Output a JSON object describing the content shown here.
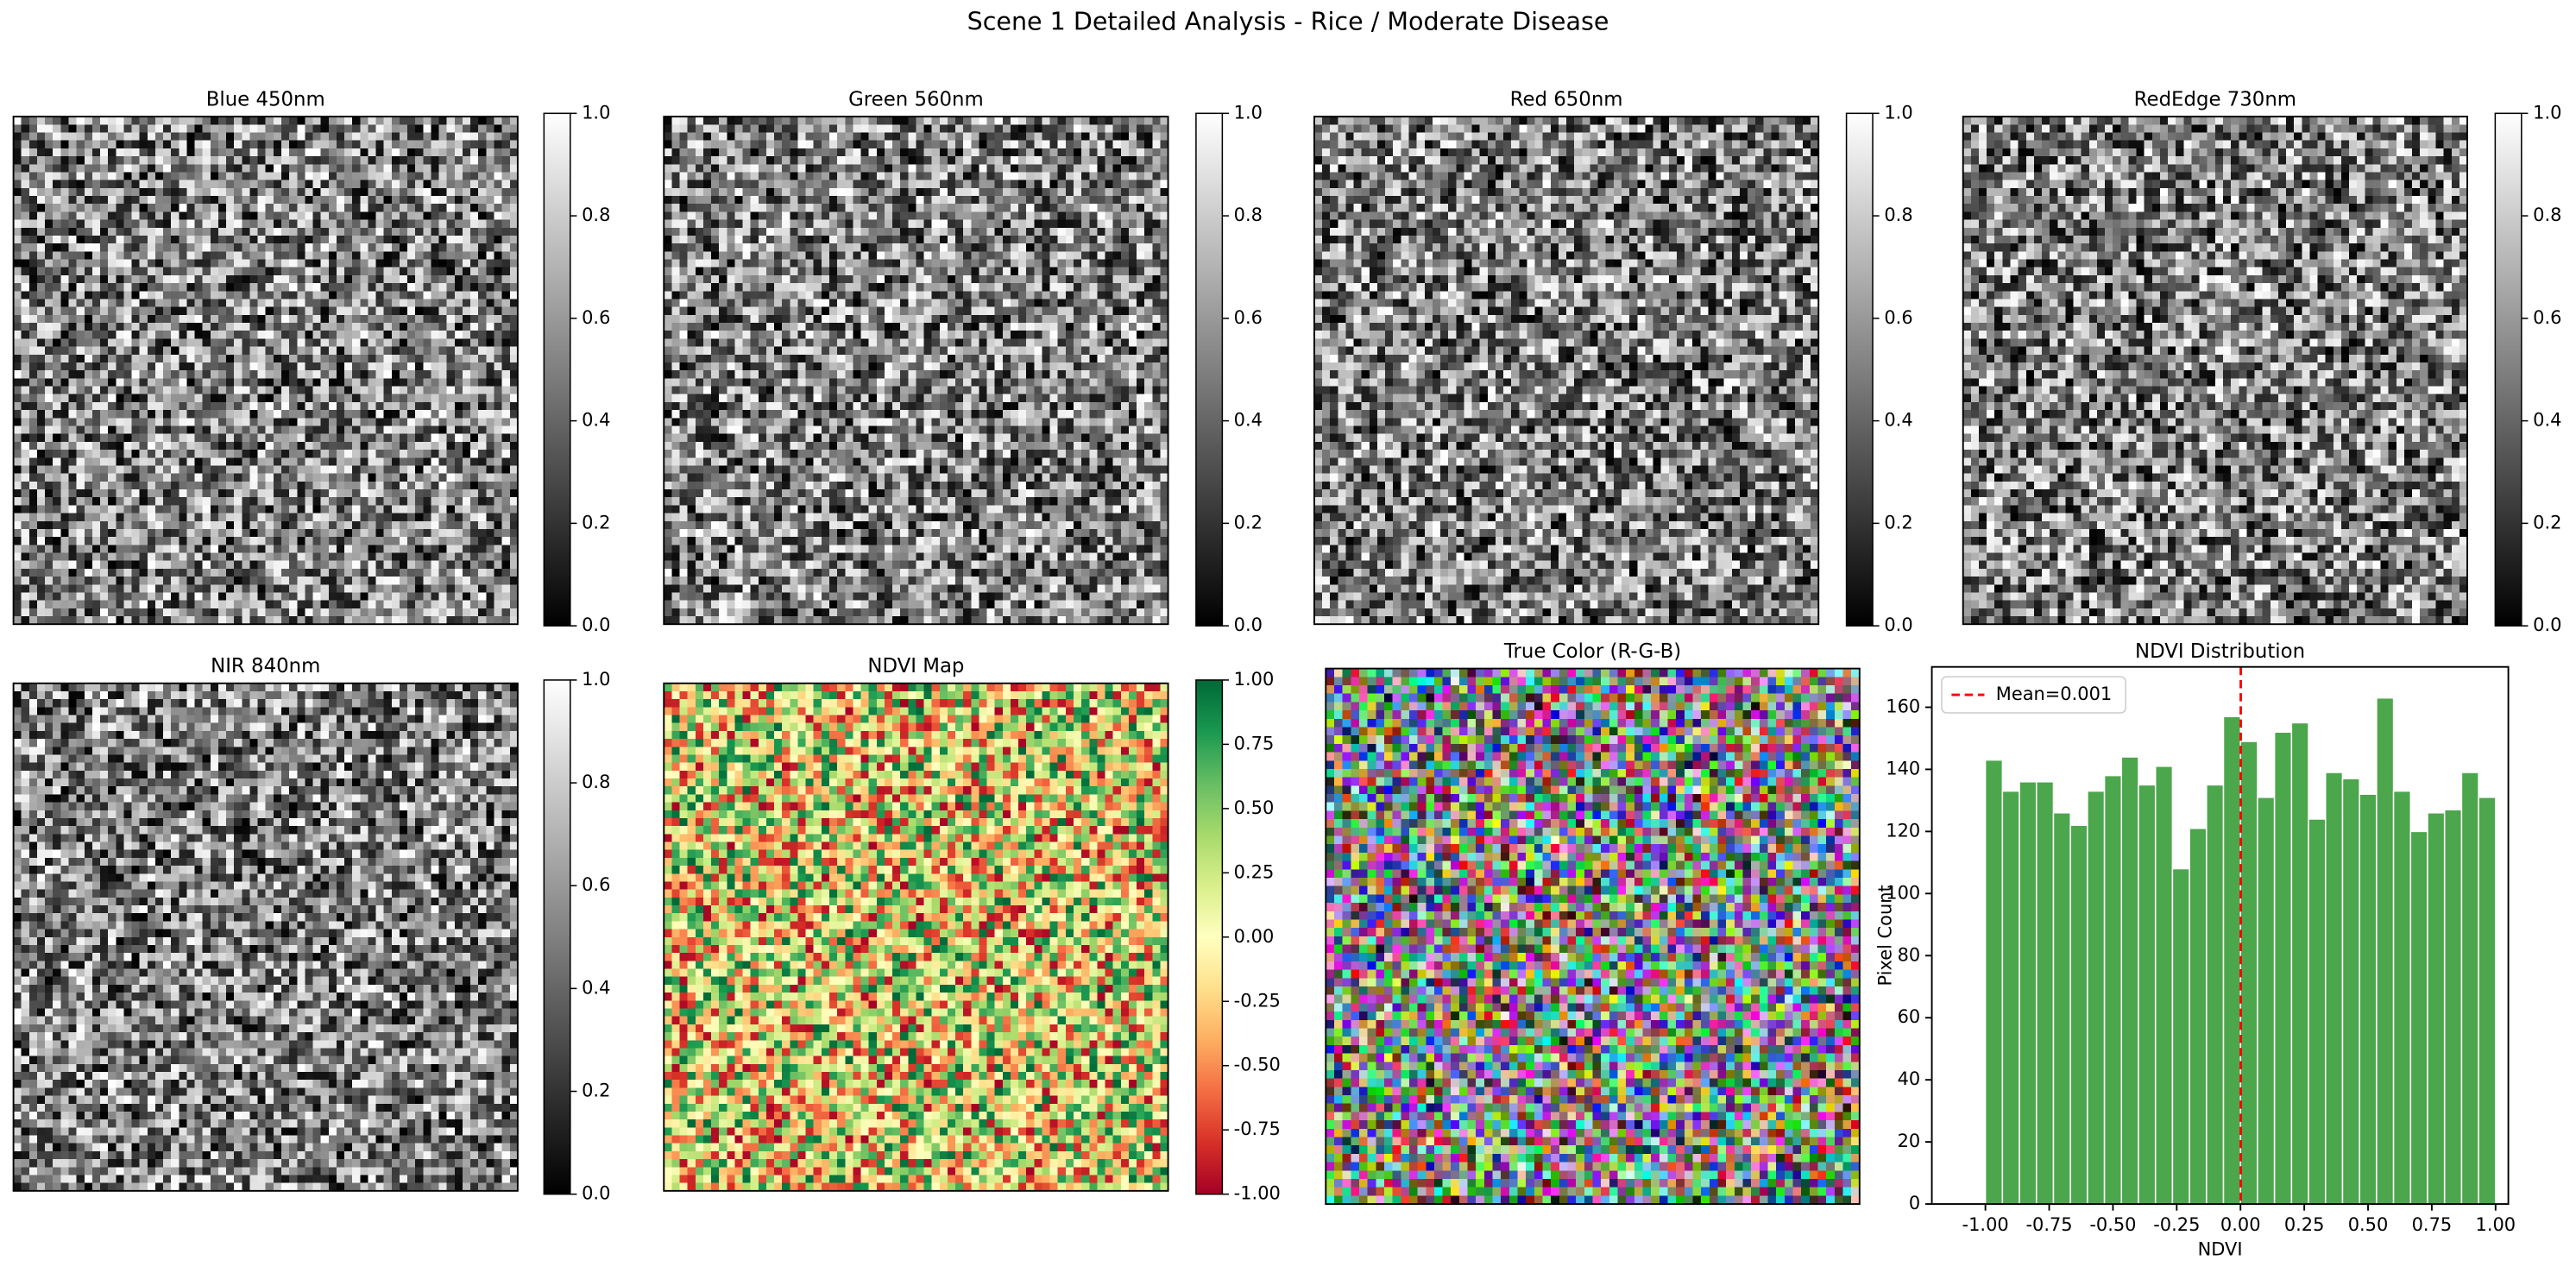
{
  "title": "Scene 1 Detailed Analysis - Rice / Moderate Disease",
  "chart_data": [
    {
      "type": "image",
      "title": "Blue 450nm",
      "colormap": "gray",
      "clim": [
        0,
        1
      ],
      "colorbar_ticks": [
        {
          "value": 0,
          "label": "0.0"
        },
        {
          "value": 0.2,
          "label": "0.2"
        },
        {
          "value": 0.4,
          "label": "0.4"
        },
        {
          "value": 0.6,
          "label": "0.6"
        },
        {
          "value": 0.8,
          "label": "0.8"
        },
        {
          "value": 1,
          "label": "1.0"
        }
      ]
    },
    {
      "type": "image",
      "title": "Green 560nm",
      "colormap": "gray",
      "clim": [
        0,
        1
      ],
      "colorbar_ticks": [
        {
          "value": 0,
          "label": "0.0"
        },
        {
          "value": 0.2,
          "label": "0.2"
        },
        {
          "value": 0.4,
          "label": "0.4"
        },
        {
          "value": 0.6,
          "label": "0.6"
        },
        {
          "value": 0.8,
          "label": "0.8"
        },
        {
          "value": 1,
          "label": "1.0"
        }
      ]
    },
    {
      "type": "image",
      "title": "Red 650nm",
      "colormap": "gray",
      "clim": [
        0,
        1
      ],
      "colorbar_ticks": [
        {
          "value": 0,
          "label": "0.0"
        },
        {
          "value": 0.2,
          "label": "0.2"
        },
        {
          "value": 0.4,
          "label": "0.4"
        },
        {
          "value": 0.6,
          "label": "0.6"
        },
        {
          "value": 0.8,
          "label": "0.8"
        },
        {
          "value": 1,
          "label": "1.0"
        }
      ]
    },
    {
      "type": "image",
      "title": "RedEdge 730nm",
      "colormap": "gray",
      "clim": [
        0,
        1
      ],
      "colorbar_ticks": [
        {
          "value": 0,
          "label": "0.0"
        },
        {
          "value": 0.2,
          "label": "0.2"
        },
        {
          "value": 0.4,
          "label": "0.4"
        },
        {
          "value": 0.6,
          "label": "0.6"
        },
        {
          "value": 0.8,
          "label": "0.8"
        },
        {
          "value": 1,
          "label": "1.0"
        }
      ]
    },
    {
      "type": "image",
      "title": "NIR 840nm",
      "colormap": "gray",
      "clim": [
        0,
        1
      ],
      "colorbar_ticks": [
        {
          "value": 0,
          "label": "0.0"
        },
        {
          "value": 0.2,
          "label": "0.2"
        },
        {
          "value": 0.4,
          "label": "0.4"
        },
        {
          "value": 0.6,
          "label": "0.6"
        },
        {
          "value": 0.8,
          "label": "0.8"
        },
        {
          "value": 1,
          "label": "1.0"
        }
      ]
    },
    {
      "type": "image",
      "title": "NDVI Map",
      "colormap": "RdYlGn",
      "clim": [
        -1,
        1
      ],
      "colorbar_ticks": [
        {
          "value": -1,
          "label": "-1.00"
        },
        {
          "value": -0.75,
          "label": "-0.75"
        },
        {
          "value": -0.5,
          "label": "-0.50"
        },
        {
          "value": -0.25,
          "label": "-0.25"
        },
        {
          "value": 0,
          "label": "0.00"
        },
        {
          "value": 0.25,
          "label": "0.25"
        },
        {
          "value": 0.5,
          "label": "0.50"
        },
        {
          "value": 0.75,
          "label": "0.75"
        },
        {
          "value": 1,
          "label": "1.00"
        }
      ]
    },
    {
      "type": "image",
      "title": "True Color (R-G-B)",
      "colormap": "rgb"
    },
    {
      "type": "histogram",
      "title": "NDVI Distribution",
      "x_label": "NDVI",
      "y_label": "Pixel Count",
      "color": "#4ca64c",
      "mean": 0.001,
      "mean_label": "Mean=0.001",
      "mean_color": "#ff0000",
      "legend": "upper left",
      "bins": [
        -1,
        -0.9333,
        -0.8667,
        -0.8,
        -0.7333,
        -0.6667,
        -0.6,
        -0.5333,
        -0.4667,
        -0.4,
        -0.3333,
        -0.2667,
        -0.2,
        -0.1333,
        -0.0667,
        0,
        0.0667,
        0.1333,
        0.2,
        0.2667,
        0.3333,
        0.4,
        0.4667,
        0.5333,
        0.6,
        0.6667,
        0.7333,
        0.8,
        0.8667,
        0.9333,
        1
      ],
      "values": [
        143,
        133,
        136,
        136,
        126,
        122,
        133,
        138,
        144,
        135,
        141,
        108,
        121,
        135,
        157,
        149,
        131,
        152,
        155,
        124,
        139,
        137,
        132,
        163,
        133,
        120,
        126,
        127,
        139,
        131
      ],
      "xlim": [
        -1.21,
        1.05
      ],
      "ylim": [
        0,
        173
      ],
      "xticks": [
        {
          "value": -1,
          "label": "-1.00"
        },
        {
          "value": -0.75,
          "label": "-0.75"
        },
        {
          "value": -0.5,
          "label": "-0.50"
        },
        {
          "value": -0.25,
          "label": "-0.25"
        },
        {
          "value": 0,
          "label": "0.00"
        },
        {
          "value": 0.25,
          "label": "0.25"
        },
        {
          "value": 0.5,
          "label": "0.50"
        },
        {
          "value": 0.75,
          "label": "0.75"
        },
        {
          "value": 1,
          "label": "1.00"
        }
      ],
      "yticks": [
        0,
        20,
        40,
        60,
        80,
        100,
        120,
        140,
        160
      ]
    }
  ]
}
